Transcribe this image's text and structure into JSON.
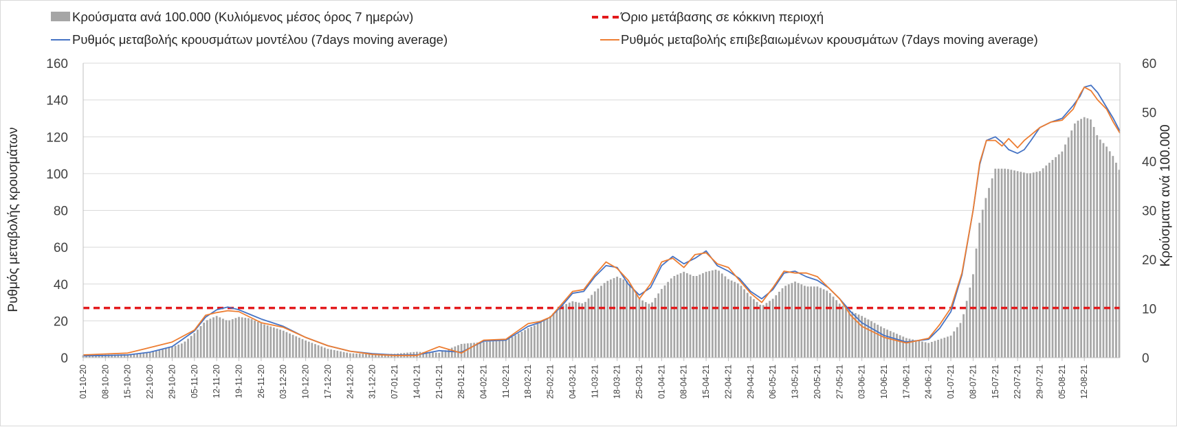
{
  "chart_data": {
    "type": "bar+line",
    "title": "",
    "ylabel_left": "Ρυθμός μεταβολής κρουσμάτων",
    "ylabel_right": "Κρούσματα ανά 100.000",
    "ylim_left": [
      0,
      160
    ],
    "ylim_right": [
      0,
      60
    ],
    "yticks_left": [
      "0",
      "20",
      "40",
      "60",
      "80",
      "100",
      "120",
      "140",
      "160"
    ],
    "yticks_right": [
      "0",
      "10",
      "20",
      "30",
      "40",
      "50",
      "60"
    ],
    "grid": true,
    "legend_position": "top",
    "x_tick_labels": [
      "01-10-20",
      "08-10-20",
      "15-10-20",
      "22-10-20",
      "29-10-20",
      "05-11-20",
      "12-11-20",
      "19-11-20",
      "26-11-20",
      "03-12-20",
      "10-12-20",
      "17-12-20",
      "24-12-20",
      "31-12-20",
      "07-01-21",
      "14-01-21",
      "21-01-21",
      "28-01-21",
      "04-02-21",
      "11-02-21",
      "18-02-21",
      "25-02-21",
      "04-03-21",
      "11-03-21",
      "18-03-21",
      "25-03-21",
      "01-04-21",
      "08-04-21",
      "15-04-21",
      "22-04-21",
      "29-04-21",
      "06-05-21",
      "13-05-21",
      "20-05-21",
      "27-05-21",
      "03-06-21",
      "10-06-21",
      "17-06-21",
      "24-06-21",
      "01-07-21",
      "08-07-21",
      "15-07-21",
      "22-07-21",
      "29-07-21",
      "05-08-21",
      "12-08-21"
    ],
    "x_week_index": [
      0,
      1,
      2,
      3,
      4,
      5,
      6,
      7,
      8,
      9,
      10,
      11,
      12,
      13,
      14,
      15,
      16,
      17,
      18,
      19,
      20,
      21,
      22,
      23,
      24,
      25,
      26,
      27,
      28,
      29,
      30,
      31,
      32,
      33,
      34,
      35,
      36,
      37,
      38,
      39,
      40,
      41,
      42,
      43,
      44,
      45
    ],
    "x_extent_weeks": [
      0,
      46.6
    ],
    "series": [
      {
        "name": "Κρούσματα ανά 100.000 (Κυλιόμενος μέσος όρος 7 ημερών)",
        "kind": "bar",
        "axis": "right",
        "color": "#a6a6a6",
        "x": [
          0,
          1,
          2,
          3,
          4,
          4.5,
          5,
          5.5,
          6,
          6.5,
          7,
          7.5,
          8,
          9,
          10,
          11,
          12,
          13,
          14,
          15,
          16,
          17,
          18,
          19,
          20,
          20.5,
          21,
          21.5,
          22,
          22.5,
          23,
          23.5,
          24,
          24.5,
          25,
          25.5,
          26,
          26.5,
          27,
          27.5,
          28,
          28.5,
          29,
          29.5,
          30,
          30.5,
          31,
          31.5,
          32,
          32.5,
          33,
          33.5,
          34,
          34.5,
          35,
          36,
          37,
          38,
          39,
          39.5,
          40,
          40.3,
          40.6,
          41,
          41.5,
          42,
          42.5,
          43,
          43.5,
          44,
          44.3,
          44.6,
          45,
          45.3,
          45.6,
          46,
          46.3,
          46.6
        ],
        "values": [
          0.5,
          0.6,
          0.7,
          1.0,
          2.2,
          3.0,
          5.0,
          7.5,
          8.5,
          7.5,
          8.3,
          8.0,
          7.0,
          5.5,
          3.5,
          1.8,
          0.9,
          0.7,
          0.8,
          1.2,
          1.0,
          2.8,
          3.2,
          3.5,
          6.0,
          7.0,
          8.5,
          10.5,
          11.5,
          11.0,
          13.5,
          15.5,
          16.5,
          15.5,
          12.0,
          10.8,
          14.0,
          16.5,
          17.5,
          16.5,
          17.5,
          18.0,
          16.0,
          15.0,
          12.5,
          10.5,
          12.0,
          14.5,
          15.5,
          14.5,
          14.5,
          13.5,
          11.0,
          9.5,
          8.5,
          6.0,
          4.0,
          3.0,
          4.5,
          7.5,
          17.0,
          28.0,
          33.0,
          38.5,
          38.5,
          38.0,
          37.5,
          38.0,
          40.0,
          42.0,
          45.0,
          48.0,
          49.0,
          48.5,
          45.0,
          43.0,
          41.0,
          38.0
        ]
      },
      {
        "name": "Όριο μετάβασης σε κόκκινη περιοχή",
        "kind": "line",
        "axis": "left",
        "color": "#e31a1c",
        "x": [
          0,
          46.6
        ],
        "values": [
          27,
          27
        ]
      },
      {
        "name": "Ρυθμός μεταβολής κρουσμάτων μοντέλου (7days moving average)",
        "kind": "line",
        "axis": "left",
        "color": "#4472c4",
        "x": [
          0,
          1,
          2,
          3,
          4,
          5,
          5.5,
          6,
          6.5,
          7,
          7.5,
          8,
          9,
          10,
          11,
          12,
          13,
          14,
          15,
          16,
          17,
          18,
          19,
          20,
          20.5,
          21,
          21.5,
          22,
          22.5,
          23,
          23.5,
          24,
          24.5,
          25,
          25.5,
          26,
          26.5,
          27,
          27.5,
          28,
          28.5,
          29,
          29.5,
          30,
          30.5,
          31,
          31.5,
          32,
          32.5,
          33,
          33.5,
          34,
          34.5,
          35,
          36,
          37,
          38,
          38.5,
          39,
          39.5,
          40,
          40.3,
          40.6,
          41,
          41.3,
          41.6,
          42,
          42.3,
          42.6,
          43,
          43.5,
          44,
          44.5,
          44.8,
          45,
          45.3,
          45.6,
          46,
          46.3,
          46.6
        ],
        "values": [
          1.0,
          1.2,
          1.5,
          3.0,
          6.0,
          14.5,
          22.0,
          26.0,
          27.5,
          26.0,
          23.5,
          21.0,
          17.0,
          11.0,
          6.5,
          3.5,
          2.2,
          1.5,
          1.5,
          3.8,
          3.0,
          9.0,
          9.5,
          17.0,
          19.0,
          22.0,
          28.0,
          35.0,
          36.0,
          44.0,
          50.0,
          49.0,
          40.0,
          34.0,
          38.0,
          50.0,
          55.0,
          51.0,
          54.0,
          58.0,
          50.0,
          47.0,
          43.0,
          36.0,
          32.0,
          37.0,
          46.0,
          47.0,
          44.0,
          42.0,
          38.0,
          32.0,
          25.0,
          19.0,
          12.0,
          8.5,
          10.0,
          16.0,
          25.0,
          45.0,
          80.0,
          105.0,
          118.0,
          120.0,
          117.0,
          113.0,
          111.0,
          113.0,
          118.0,
          125.0,
          128.0,
          130.0,
          137.0,
          142.0,
          147.0,
          148.0,
          144.0,
          136.0,
          130.0,
          123.0
        ]
      },
      {
        "name": "Ρυθμός μεταβολής επιβεβαιωμένων κρουσμάτων (7days moving average)",
        "kind": "line",
        "axis": "left",
        "color": "#ed7d31",
        "x": [
          0,
          1,
          2,
          3,
          4,
          5,
          5.5,
          6,
          6.5,
          7,
          7.5,
          8,
          9,
          10,
          11,
          12,
          13,
          14,
          15,
          16,
          17,
          18,
          19,
          20,
          20.5,
          21,
          21.5,
          22,
          22.5,
          23,
          23.5,
          24,
          24.5,
          25,
          25.5,
          26,
          26.5,
          27,
          27.5,
          28,
          28.5,
          29,
          29.5,
          30,
          30.5,
          31,
          31.5,
          32,
          32.5,
          33,
          33.5,
          34,
          34.5,
          35,
          36,
          37,
          38,
          38.5,
          39,
          39.5,
          40,
          40.3,
          40.6,
          41,
          41.3,
          41.6,
          42,
          42.3,
          42.6,
          43,
          43.5,
          44,
          44.5,
          44.8,
          45,
          45.3,
          45.6,
          46,
          46.3,
          46.6
        ],
        "values": [
          1.5,
          2.0,
          2.5,
          5.5,
          8.5,
          15.0,
          23.0,
          24.5,
          25.5,
          25.0,
          22.0,
          19.0,
          16.5,
          11.0,
          6.5,
          3.5,
          1.8,
          1.2,
          1.2,
          6.0,
          2.5,
          9.5,
          10.0,
          18.5,
          19.5,
          22.0,
          29.0,
          36.0,
          37.0,
          45.0,
          52.0,
          48.5,
          42.0,
          32.0,
          40.0,
          52.0,
          54.0,
          49.0,
          56.0,
          57.0,
          51.0,
          49.0,
          42.0,
          35.0,
          30.0,
          38.0,
          47.0,
          46.0,
          46.0,
          44.0,
          38.0,
          32.0,
          23.0,
          17.0,
          11.0,
          8.0,
          10.5,
          18.0,
          27.0,
          46.0,
          80.0,
          106.0,
          118.0,
          118.0,
          115.0,
          119.0,
          114.0,
          118.0,
          121.0,
          125.0,
          128.0,
          129.0,
          135.0,
          143.0,
          147.0,
          145.0,
          140.0,
          135.0,
          128.0,
          122.0
        ]
      }
    ]
  },
  "legend": {
    "bar_label": "Κρούσματα ανά 100.000 (Κυλιόμενος μέσος όρος 7 ημερών)",
    "threshold_label": "Όριο μετάβασης σε κόκκινη περιοχή",
    "model_label": "Ρυθμός μεταβολής κρουσμάτων μοντέλου (7days moving average)",
    "confirmed_label": "Ρυθμός μεταβολής επιβεβαιωμένων κρουσμάτων (7days moving average)"
  },
  "colors": {
    "bars": "#a6a6a6",
    "threshold": "#e31a1c",
    "model": "#4472c4",
    "confirmed": "#ed7d31",
    "grid": "#d9d9d9"
  }
}
